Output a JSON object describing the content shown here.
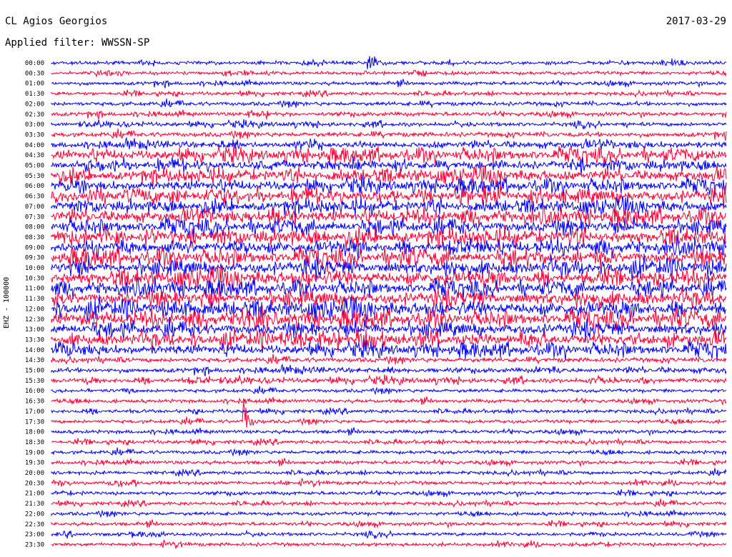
{
  "header": {
    "station": "CL Agios Georgios",
    "date": "2017-03-29",
    "filter_label": "Applied filter: WWSSN-SP"
  },
  "channel_label": "EHZ - 100000",
  "colors": {
    "even_row": "#0000ff",
    "odd_row": "#ff0033",
    "background": "#ffffff"
  },
  "chart_data": {
    "type": "line",
    "title": "",
    "xlabel": "",
    "ylabel": "EHZ - 100000",
    "rows": [
      "00:00",
      "00:30",
      "01:00",
      "01:30",
      "02:00",
      "02:30",
      "03:00",
      "03:30",
      "04:00",
      "04:30",
      "05:00",
      "05:30",
      "06:00",
      "06:30",
      "07:00",
      "07:30",
      "08:00",
      "08:30",
      "09:00",
      "09:30",
      "10:00",
      "10:30",
      "11:00",
      "11:30",
      "12:00",
      "12:30",
      "13:00",
      "13:30",
      "14:00",
      "14:30",
      "15:00",
      "15:30",
      "16:00",
      "16:30",
      "17:00",
      "17:30",
      "18:00",
      "18:30",
      "19:00",
      "19:30",
      "20:00",
      "20:30",
      "21:00",
      "21:30",
      "22:00",
      "22:30",
      "23:00",
      "23:30"
    ],
    "row_activity": [
      1,
      1,
      1,
      1,
      1.2,
      1.2,
      1.2,
      1.5,
      2,
      3.5,
      3,
      3.5,
      3.5,
      4,
      3.5,
      4,
      4,
      4.5,
      4,
      4.5,
      4.5,
      4.5,
      4,
      4.5,
      4.5,
      4.5,
      4,
      4,
      3.5,
      1.5,
      1.5,
      1.5,
      1,
      1,
      1,
      1,
      1,
      1,
      1,
      1,
      1,
      1,
      1,
      1,
      1,
      1,
      1,
      1
    ],
    "events": [
      {
        "row": "00:00",
        "minute": 14,
        "amplitude": "large"
      },
      {
        "row": "17:30",
        "minute": 8.5,
        "amplitude": "large"
      }
    ],
    "grid": false,
    "legend": "none"
  }
}
